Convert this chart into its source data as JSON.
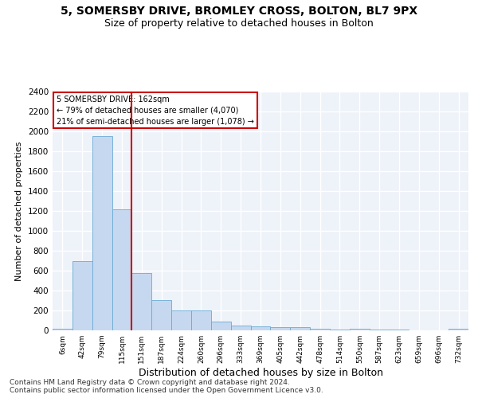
{
  "title1": "5, SOMERSBY DRIVE, BROMLEY CROSS, BOLTON, BL7 9PX",
  "title2": "Size of property relative to detached houses in Bolton",
  "xlabel": "Distribution of detached houses by size in Bolton",
  "ylabel": "Number of detached properties",
  "bar_color": "#c5d8f0",
  "bar_edge_color": "#6aaad4",
  "vline_color": "#cc0000",
  "vline_x_index": 4,
  "annotation_line1": "5 SOMERSBY DRIVE: 162sqm",
  "annotation_line2": "← 79% of detached houses are smaller (4,070)",
  "annotation_line3": "21% of semi-detached houses are larger (1,078) →",
  "annotation_box_color": "#ffffff",
  "annotation_box_edge": "#cc0000",
  "categories": [
    "6sqm",
    "42sqm",
    "79sqm",
    "115sqm",
    "151sqm",
    "187sqm",
    "224sqm",
    "260sqm",
    "296sqm",
    "333sqm",
    "369sqm",
    "405sqm",
    "442sqm",
    "478sqm",
    "514sqm",
    "550sqm",
    "587sqm",
    "623sqm",
    "659sqm",
    "696sqm",
    "732sqm"
  ],
  "values": [
    20,
    700,
    1950,
    1220,
    575,
    305,
    200,
    200,
    85,
    45,
    38,
    35,
    30,
    18,
    12,
    20,
    8,
    5,
    3,
    2,
    20
  ],
  "ylim": [
    0,
    2400
  ],
  "yticks": [
    0,
    200,
    400,
    600,
    800,
    1000,
    1200,
    1400,
    1600,
    1800,
    2000,
    2200,
    2400
  ],
  "footer": "Contains HM Land Registry data © Crown copyright and database right 2024.\nContains public sector information licensed under the Open Government Licence v3.0.",
  "background_color": "#eef2f9",
  "grid_color": "#ffffff",
  "title1_fontsize": 10,
  "title2_fontsize": 9,
  "xlabel_fontsize": 9,
  "ylabel_fontsize": 8,
  "footer_fontsize": 6.5
}
